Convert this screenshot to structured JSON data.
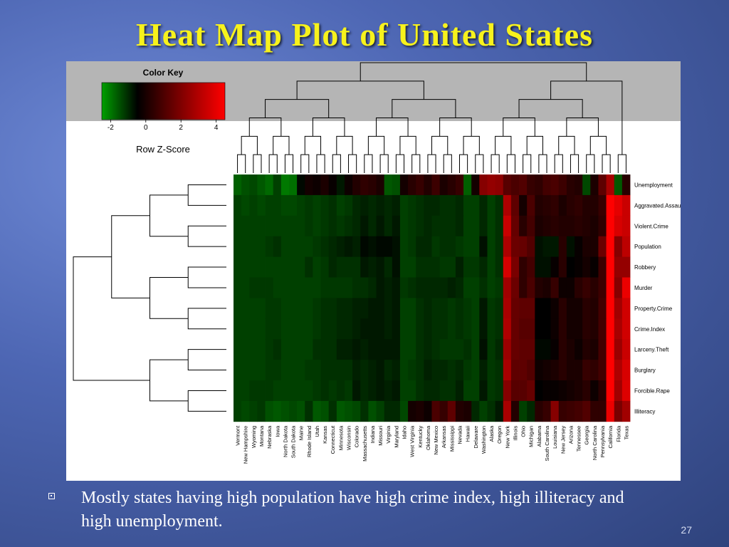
{
  "slide": {
    "title": "Heat Map Plot of United States",
    "bullet": "Mostly states having high population have high crime index, high illiteracy and high unemployment.",
    "page_number": "27"
  },
  "colors": {
    "low": "#00a000",
    "mid": "#000000",
    "high": "#ff0000",
    "key_band": "#b5b5b5"
  },
  "chart_data": {
    "type": "heatmap",
    "color_key": {
      "title": "Color Key",
      "label": "Row Z-Score",
      "ticks": [
        "-2",
        "0",
        "2",
        "4"
      ],
      "range": [
        -2.5,
        4.5
      ]
    },
    "columns": [
      "Vermont",
      "New Hampshire",
      "Wyoming",
      "Montana",
      "Nebraska",
      "Iowa",
      "North Dakota",
      "South Dakota",
      "Maine",
      "Rhode Island",
      "Utah",
      "Kansas",
      "Connecticut",
      "Minnesota",
      "Wisconsin",
      "Colorado",
      "Massachusetts",
      "Indiana",
      "Missouri",
      "Virginia",
      "Maryland",
      "Idaho",
      "West Virginia",
      "Kentucky",
      "Oklahoma",
      "New Mexico",
      "Arkansas",
      "Mississippi",
      "Nevada",
      "Hawaii",
      "Delaware",
      "Washington",
      "Alaska",
      "Oregon",
      "New York",
      "Illinois",
      "Ohio",
      "Michigan",
      "Alabama",
      "South Carolina",
      "Louisiana",
      "New Jersey",
      "Arizona",
      "Tennessee",
      "Georgia",
      "North Carolina",
      "Pennsylvania",
      "California",
      "Florida",
      "Texas"
    ],
    "rows": [
      "Unemployment",
      "Aggravated.Assault",
      "Violent.Crime",
      "Population",
      "Robbery",
      "Murder",
      "Property.Crime",
      "Crime.Index",
      "Larceny.Theft",
      "Burglary",
      "Forcible.Rape",
      "Illiteracy"
    ],
    "values": [
      [
        -1.2,
        -1.0,
        -0.9,
        -1.1,
        -1.3,
        -0.8,
        -1.5,
        -1.4,
        -0.1,
        0.3,
        0.2,
        0.4,
        0.1,
        -0.3,
        0.2,
        0.5,
        0.7,
        0.6,
        0.4,
        -1.1,
        -1.0,
        0.3,
        0.6,
        0.8,
        0.5,
        0.9,
        0.4,
        0.6,
        0.8,
        -1.2,
        0.3,
        2.0,
        2.2,
        2.1,
        1.3,
        1.1,
        1.2,
        0.8,
        0.7,
        1.0,
        1.1,
        0.9,
        0.6,
        0.5,
        -0.9,
        0.4,
        1.4,
        2.5,
        -1.1,
        0.6
      ],
      [
        -0.8,
        -0.9,
        -0.8,
        -0.9,
        -0.8,
        -0.8,
        -0.9,
        -0.9,
        -0.8,
        -0.7,
        -0.8,
        -0.7,
        -0.6,
        -0.8,
        -0.7,
        -0.5,
        -0.4,
        -0.5,
        -0.4,
        -0.5,
        -0.4,
        -0.8,
        -0.7,
        -0.6,
        -0.5,
        -0.5,
        -0.6,
        -0.6,
        -0.5,
        -0.8,
        -0.8,
        -0.5,
        -0.8,
        -0.6,
        2.6,
        1.4,
        0.3,
        1.1,
        0.5,
        0.6,
        0.7,
        0.4,
        0.6,
        0.7,
        0.5,
        0.5,
        0.8,
        4.2,
        3.4,
        3.0
      ],
      [
        -0.8,
        -0.8,
        -0.8,
        -0.8,
        -0.8,
        -0.8,
        -0.8,
        -0.8,
        -0.8,
        -0.7,
        -0.8,
        -0.7,
        -0.6,
        -0.7,
        -0.6,
        -0.5,
        -0.3,
        -0.5,
        -0.3,
        -0.5,
        -0.3,
        -0.8,
        -0.7,
        -0.6,
        -0.5,
        -0.6,
        -0.6,
        -0.6,
        -0.5,
        -0.8,
        -0.8,
        -0.5,
        -0.8,
        -0.6,
        3.0,
        1.5,
        0.6,
        1.0,
        0.4,
        0.5,
        0.6,
        0.5,
        0.5,
        0.6,
        0.5,
        0.4,
        0.7,
        4.2,
        3.2,
        3.0
      ],
      [
        -0.8,
        -0.8,
        -0.8,
        -0.8,
        -0.7,
        -0.6,
        -0.8,
        -0.8,
        -0.8,
        -0.8,
        -0.7,
        -0.6,
        -0.5,
        -0.4,
        -0.3,
        -0.4,
        -0.1,
        -0.2,
        -0.1,
        -0.1,
        -0.2,
        -0.8,
        -0.7,
        -0.5,
        -0.5,
        -0.7,
        -0.6,
        -0.6,
        -0.7,
        -0.8,
        -0.8,
        -0.2,
        -0.8,
        -0.6,
        2.6,
        1.6,
        1.5,
        1.2,
        -0.2,
        -0.3,
        -0.3,
        0.6,
        -0.2,
        0.1,
        0.4,
        0.4,
        1.6,
        4.3,
        2.0,
        2.8
      ],
      [
        -0.8,
        -0.8,
        -0.8,
        -0.8,
        -0.8,
        -0.8,
        -0.8,
        -0.8,
        -0.8,
        -0.6,
        -0.8,
        -0.7,
        -0.5,
        -0.6,
        -0.6,
        -0.6,
        -0.3,
        -0.4,
        -0.3,
        -0.5,
        -0.2,
        -0.8,
        -0.8,
        -0.6,
        -0.6,
        -0.6,
        -0.7,
        -0.7,
        -0.4,
        -0.7,
        -0.7,
        -0.5,
        -0.8,
        -0.6,
        3.2,
        1.8,
        0.7,
        1.0,
        -0.2,
        -0.2,
        0.1,
        0.6,
        0.0,
        0.1,
        0.3,
        0.1,
        0.9,
        4.3,
        2.2,
        2.2
      ],
      [
        -0.8,
        -0.8,
        -0.7,
        -0.7,
        -0.7,
        -0.8,
        -0.8,
        -0.8,
        -0.8,
        -0.8,
        -0.8,
        -0.7,
        -0.7,
        -0.7,
        -0.7,
        -0.6,
        -0.6,
        -0.5,
        -0.3,
        -0.4,
        -0.3,
        -0.7,
        -0.6,
        -0.5,
        -0.5,
        -0.5,
        -0.5,
        -0.4,
        -0.5,
        -0.8,
        -0.8,
        -0.6,
        -0.8,
        -0.7,
        2.4,
        1.6,
        0.7,
        1.1,
        0.5,
        0.4,
        0.8,
        0.2,
        0.2,
        0.6,
        0.8,
        0.6,
        0.9,
        4.0,
        2.0,
        3.5
      ],
      [
        -0.8,
        -0.8,
        -0.8,
        -0.8,
        -0.7,
        -0.7,
        -0.8,
        -0.8,
        -0.8,
        -0.8,
        -0.7,
        -0.6,
        -0.6,
        -0.5,
        -0.5,
        -0.4,
        -0.4,
        -0.3,
        -0.3,
        -0.4,
        -0.3,
        -0.8,
        -0.8,
        -0.6,
        -0.5,
        -0.6,
        -0.6,
        -0.7,
        -0.6,
        -0.7,
        -0.8,
        -0.3,
        -0.7,
        -0.6,
        2.5,
        1.5,
        1.4,
        1.4,
        0.0,
        0.0,
        0.2,
        0.6,
        0.3,
        0.3,
        0.6,
        0.5,
        1.0,
        4.2,
        2.4,
        3.1
      ],
      [
        -0.8,
        -0.8,
        -0.8,
        -0.8,
        -0.7,
        -0.7,
        -0.8,
        -0.8,
        -0.8,
        -0.8,
        -0.7,
        -0.6,
        -0.6,
        -0.5,
        -0.5,
        -0.4,
        -0.3,
        -0.3,
        -0.3,
        -0.4,
        -0.3,
        -0.8,
        -0.8,
        -0.6,
        -0.5,
        -0.6,
        -0.6,
        -0.7,
        -0.6,
        -0.7,
        -0.8,
        -0.3,
        -0.7,
        -0.6,
        2.6,
        1.5,
        1.3,
        1.3,
        0.0,
        0.0,
        0.2,
        0.6,
        0.3,
        0.3,
        0.6,
        0.5,
        1.0,
        4.2,
        2.5,
        3.1
      ],
      [
        -0.8,
        -0.8,
        -0.8,
        -0.8,
        -0.7,
        -0.6,
        -0.8,
        -0.8,
        -0.8,
        -0.8,
        -0.6,
        -0.6,
        -0.6,
        -0.4,
        -0.4,
        -0.3,
        -0.4,
        -0.3,
        -0.3,
        -0.3,
        -0.3,
        -0.8,
        -0.8,
        -0.6,
        -0.5,
        -0.6,
        -0.7,
        -0.7,
        -0.7,
        -0.6,
        -0.8,
        -0.2,
        -0.7,
        -0.5,
        2.3,
        1.5,
        1.4,
        1.4,
        -0.1,
        -0.1,
        0.1,
        0.6,
        0.4,
        0.2,
        0.5,
        0.4,
        1.0,
        4.1,
        2.3,
        3.0
      ],
      [
        -0.8,
        -0.8,
        -0.8,
        -0.8,
        -0.7,
        -0.7,
        -0.8,
        -0.8,
        -0.8,
        -0.7,
        -0.7,
        -0.6,
        -0.6,
        -0.6,
        -0.6,
        -0.4,
        -0.5,
        -0.4,
        -0.3,
        -0.5,
        -0.4,
        -0.8,
        -0.7,
        -0.6,
        -0.4,
        -0.5,
        -0.5,
        -0.6,
        -0.5,
        -0.7,
        -0.8,
        -0.4,
        -0.7,
        -0.6,
        2.5,
        1.4,
        1.4,
        1.2,
        0.2,
        0.3,
        0.4,
        0.6,
        0.4,
        0.4,
        0.8,
        0.7,
        1.0,
        4.3,
        2.6,
        3.2
      ],
      [
        -0.8,
        -0.8,
        -0.7,
        -0.7,
        -0.7,
        -0.8,
        -0.8,
        -0.8,
        -0.8,
        -0.8,
        -0.7,
        -0.6,
        -0.7,
        -0.6,
        -0.7,
        -0.3,
        -0.5,
        -0.4,
        -0.3,
        -0.4,
        -0.3,
        -0.8,
        -0.8,
        -0.6,
        -0.5,
        -0.5,
        -0.6,
        -0.6,
        -0.4,
        -0.8,
        -0.8,
        -0.3,
        -0.7,
        -0.6,
        2.0,
        1.3,
        1.3,
        1.5,
        0.0,
        0.1,
        0.1,
        0.2,
        0.3,
        0.4,
        0.6,
        0.2,
        0.6,
        4.3,
        2.4,
        3.3
      ],
      [
        -0.8,
        -0.9,
        -0.8,
        -0.7,
        -1.0,
        -1.1,
        -1.0,
        -0.9,
        -1.0,
        -0.6,
        -1.1,
        -1.0,
        -0.6,
        -1.1,
        -1.0,
        -0.9,
        -0.6,
        -1.0,
        -0.8,
        -0.5,
        -0.5,
        -0.9,
        0.3,
        0.4,
        0.2,
        1.1,
        0.8,
        1.4,
        0.5,
        0.4,
        -0.5,
        -0.8,
        -0.6,
        -0.3,
        2.5,
        0.5,
        -0.8,
        -0.5,
        0.6,
        0.8,
        2.0,
        0.8,
        0.9,
        1.0,
        1.2,
        0.7,
        0.7,
        3.5,
        1.8,
        2.4
      ]
    ]
  }
}
